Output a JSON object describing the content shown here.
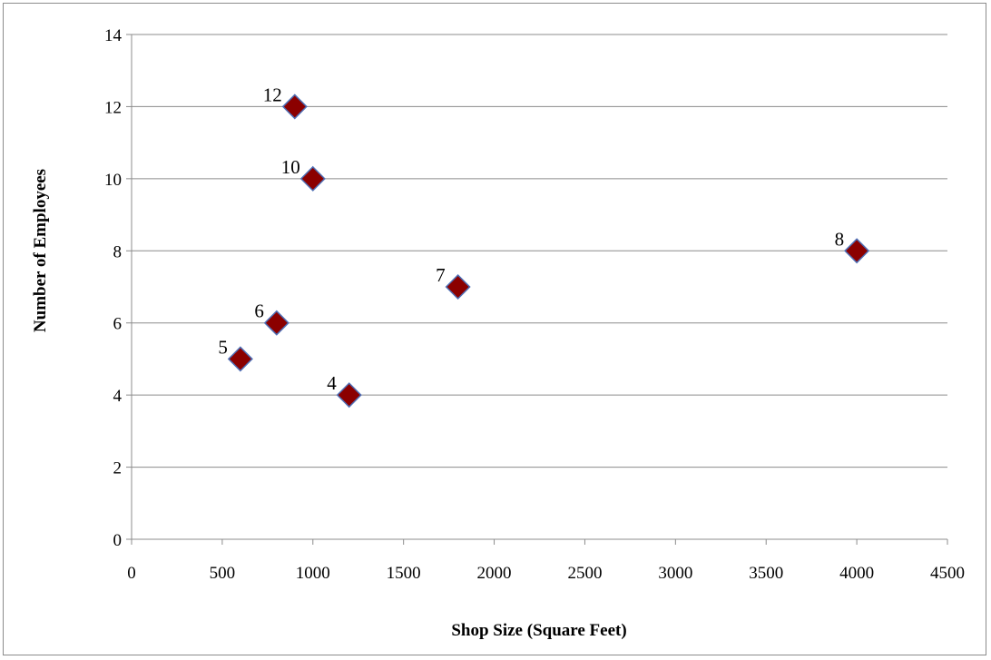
{
  "chart_data": {
    "type": "scatter",
    "title": "",
    "xlabel": "Shop Size (Square Feet)",
    "ylabel": "Number of Employees",
    "xlim": [
      0,
      4500
    ],
    "ylim": [
      0,
      14
    ],
    "xticks": [
      0,
      500,
      1000,
      1500,
      2000,
      2500,
      3000,
      3500,
      4000,
      4500
    ],
    "yticks": [
      0,
      2,
      4,
      6,
      8,
      10,
      12,
      14
    ],
    "grid": "horizontal",
    "marker": "diamond",
    "marker_color": "#8b0000",
    "marker_edge_color": "#4f6fb5",
    "points": [
      {
        "x": 600,
        "y": 5,
        "label": "5"
      },
      {
        "x": 800,
        "y": 6,
        "label": "6"
      },
      {
        "x": 900,
        "y": 12,
        "label": "12"
      },
      {
        "x": 1000,
        "y": 10,
        "label": "10"
      },
      {
        "x": 1200,
        "y": 4,
        "label": "4"
      },
      {
        "x": 1800,
        "y": 7,
        "label": "7"
      },
      {
        "x": 4000,
        "y": 8,
        "label": "8"
      }
    ]
  }
}
